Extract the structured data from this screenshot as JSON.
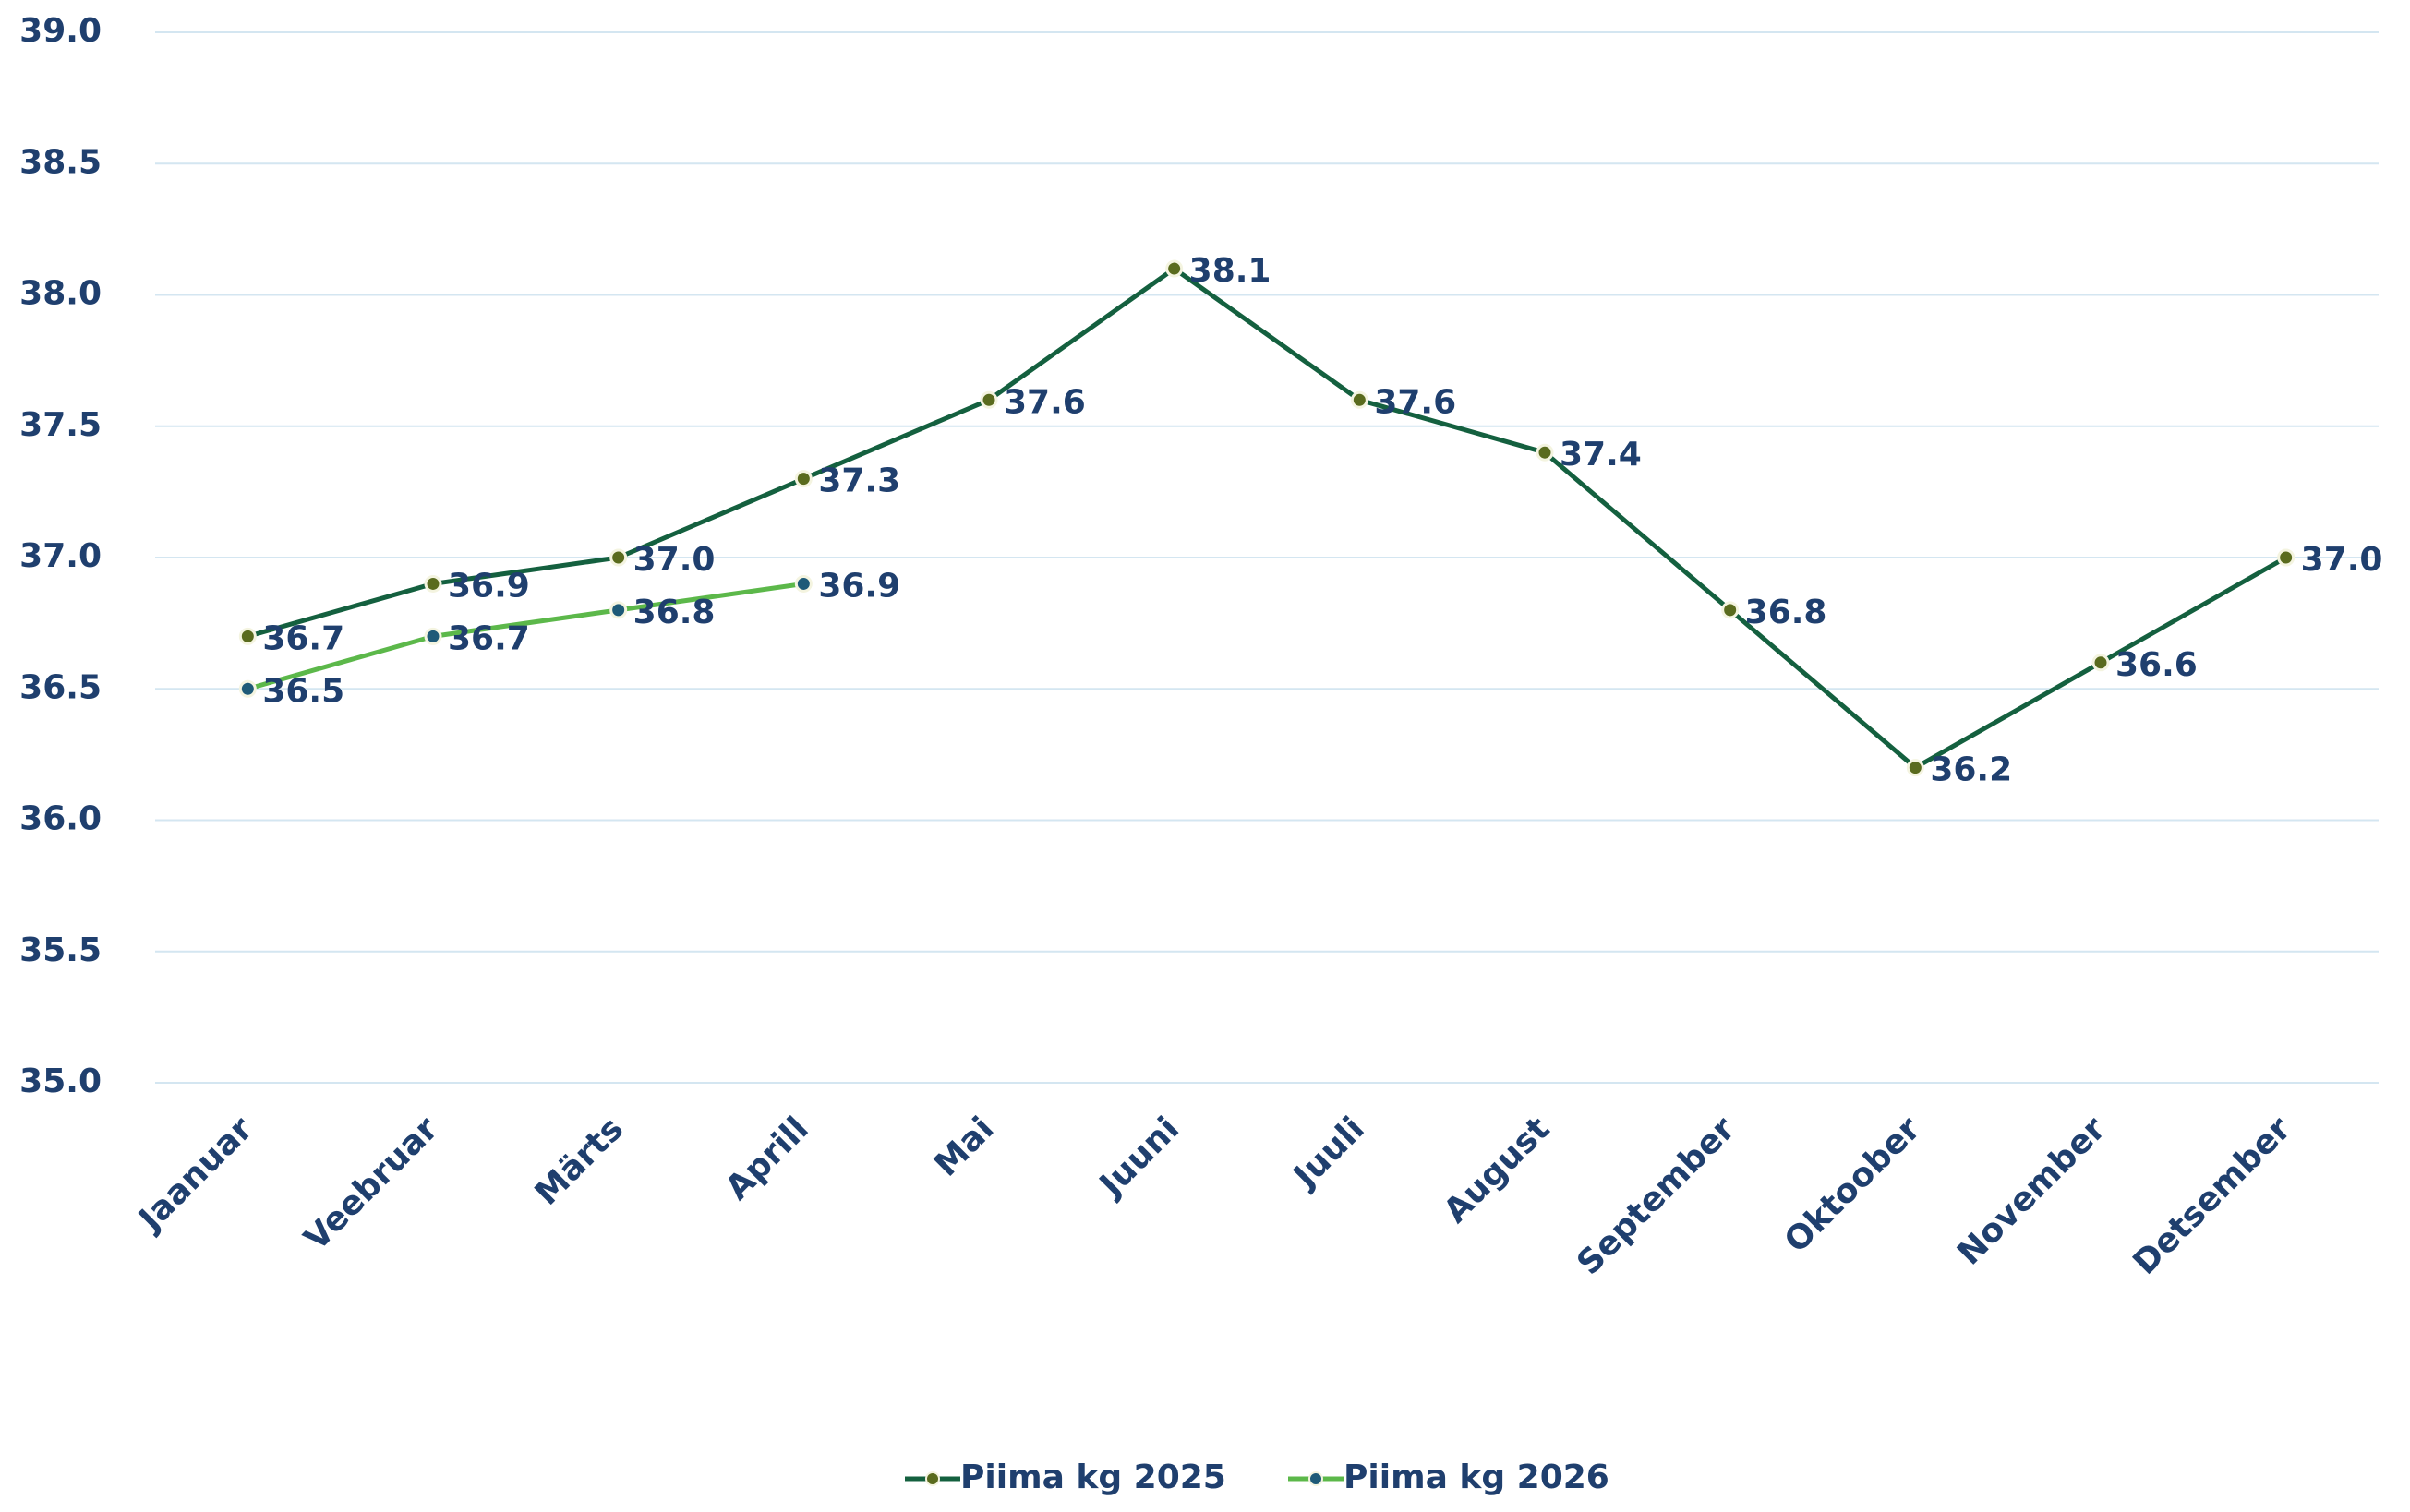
{
  "chart_data": {
    "type": "line",
    "categories": [
      "Jaanuar",
      "Veebruar",
      "Märts",
      "Aprill",
      "Mai",
      "Juuni",
      "Juuli",
      "August",
      "September",
      "Oktoober",
      "November",
      "Detsember"
    ],
    "series": [
      {
        "name": "Piima kg 2025",
        "color": "#14603f",
        "marker_color": "#5a6b1e",
        "values": [
          36.7,
          36.9,
          37.0,
          37.3,
          37.6,
          38.1,
          37.6,
          37.4,
          36.8,
          36.2,
          36.6,
          37.0
        ],
        "value_labels": [
          "36.7",
          "36.9",
          "37.0",
          "37.3",
          "37.6",
          "38.1",
          "37.6",
          "37.4",
          "36.8",
          "36.2",
          "36.6",
          "37.0"
        ]
      },
      {
        "name": "Piima kg 2026",
        "color": "#5cb84a",
        "marker_color": "#1e5a78",
        "values": [
          36.5,
          36.7,
          36.8,
          36.9,
          null,
          null,
          null,
          null,
          null,
          null,
          null,
          null
        ]
      }
    ],
    "ylim": [
      35,
      39
    ],
    "yticks": [
      {
        "value": 35,
        "label": "35.0"
      },
      35.5,
      {
        "value": 36,
        "label": "36.0"
      },
      36.5,
      {
        "value": 37,
        "label": "37.0"
      },
      37.5,
      {
        "value": 38,
        "label": "38.0"
      },
      38.5,
      {
        "value": 39,
        "label": "39.0"
      }
    ],
    "grid": true,
    "legend": "bottom"
  }
}
